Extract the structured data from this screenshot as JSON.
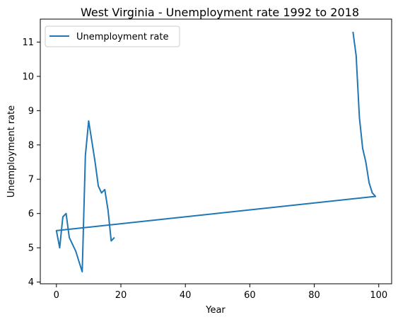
{
  "chart_data": {
    "type": "line",
    "title": "West Virginia - Unemployment rate 1992 to 2018",
    "xlabel": "Year",
    "ylabel": "Unemployment rate",
    "xlim": [
      -5,
      104
    ],
    "ylim": [
      3.95,
      11.67
    ],
    "xticks": [
      0,
      20,
      40,
      60,
      80,
      100
    ],
    "yticks": [
      4,
      5,
      6,
      7,
      8,
      9,
      10,
      11
    ],
    "grid": false,
    "legend_position": "top-left",
    "series": [
      {
        "name": "Unemployment rate",
        "color": "#1f77b4",
        "x": [
          92,
          93,
          94,
          95,
          96,
          97,
          98,
          99,
          0,
          1,
          2,
          3,
          4,
          5,
          6,
          7,
          8,
          9,
          10,
          11,
          12,
          13,
          14,
          15,
          16,
          17,
          18
        ],
        "y": [
          11.3,
          10.6,
          8.8,
          7.9,
          7.5,
          6.9,
          6.6,
          6.5,
          5.5,
          5.0,
          5.9,
          6.0,
          5.3,
          5.1,
          4.9,
          4.6,
          4.3,
          7.7,
          8.7,
          8.1,
          7.5,
          6.8,
          6.6,
          6.7,
          6.1,
          5.2,
          5.3
        ]
      }
    ]
  }
}
